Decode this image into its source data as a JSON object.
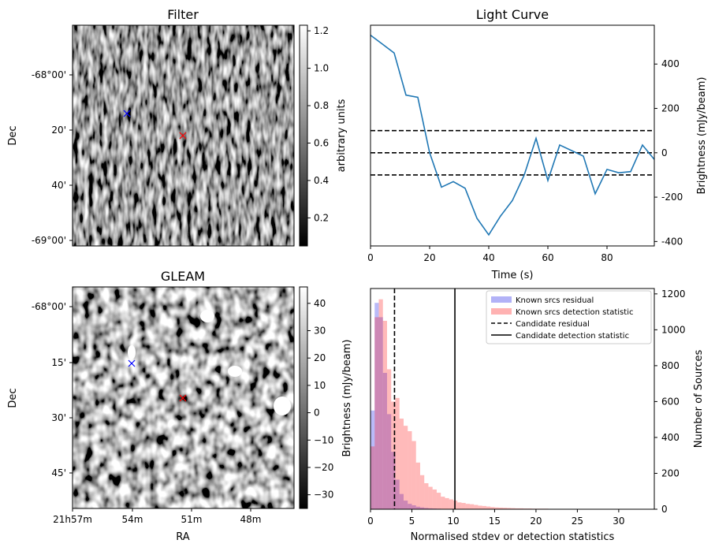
{
  "chart_data": [
    {
      "type": "heatmap",
      "title": "Filter",
      "ylabel": "Dec",
      "yticks": [
        "-68°00'",
        "20'",
        "40'",
        "-69°00'"
      ],
      "colorbar": {
        "label": "arbitrary units",
        "ticks": [
          0.2,
          0.4,
          0.6,
          0.8,
          1.0,
          1.2
        ],
        "range": [
          0.05,
          1.23
        ]
      },
      "markers": [
        {
          "color": "blue",
          "symbol": "x"
        },
        {
          "color": "red",
          "symbol": "x"
        }
      ]
    },
    {
      "type": "line",
      "title": "Light Curve",
      "xlabel": "Time (s)",
      "ylabel": "Brightness (mJy/beam)",
      "xlim": [
        0,
        96
      ],
      "ylim": [
        -420,
        575
      ],
      "xticks": [
        0,
        20,
        40,
        60,
        80
      ],
      "yticks": [
        -400,
        -200,
        0,
        200,
        400
      ],
      "x": [
        0,
        4,
        8,
        12,
        16,
        20,
        24,
        28,
        32,
        36,
        40,
        44,
        48,
        52,
        56,
        60,
        64,
        68,
        72,
        76,
        80,
        84,
        88,
        92,
        96
      ],
      "y": [
        530,
        490,
        450,
        260,
        250,
        0,
        -155,
        -130,
        -160,
        -295,
        -370,
        -285,
        -215,
        -100,
        65,
        -125,
        35,
        10,
        -15,
        -185,
        -75,
        -90,
        -85,
        35,
        -30
      ],
      "hlines": [
        -100,
        0,
        100
      ]
    },
    {
      "type": "heatmap",
      "title": "GLEAM",
      "xlabel": "RA",
      "ylabel": "Dec",
      "xticks": [
        "21h57m",
        "54m",
        "51m",
        "48m"
      ],
      "yticks": [
        "-68°00'",
        "15'",
        "30'",
        "45'"
      ],
      "colorbar": {
        "label": "Brightness (mJy/beam)",
        "ticks": [
          -30,
          -20,
          -10,
          0,
          10,
          20,
          30,
          40
        ],
        "range": [
          -35,
          46
        ]
      },
      "markers": [
        {
          "color": "blue",
          "symbol": "x"
        },
        {
          "color": "red",
          "symbol": "x"
        }
      ]
    },
    {
      "type": "bar",
      "title": "",
      "xlabel": "Normalised stdev or detection statistics",
      "ylabel": "Number of Sources",
      "xlim": [
        0,
        34.3
      ],
      "ylim": [
        0,
        1230
      ],
      "xticks": [
        0,
        5,
        10,
        15,
        20,
        25,
        30
      ],
      "yticks": [
        0,
        200,
        400,
        600,
        800,
        1000,
        1200
      ],
      "bin_width": 0.5,
      "series": [
        {
          "name": "Known srcs residual",
          "color": "#aab0f4",
          "values": [
            550,
            1150,
            1070,
            760,
            530,
            320,
            165,
            85,
            48,
            30,
            22,
            14,
            10,
            7,
            5,
            4,
            3,
            2,
            2,
            1
          ]
        },
        {
          "name": "Known srcs detection statistic",
          "color": "#ffacac",
          "values": [
            350,
            1070,
            1170,
            1050,
            780,
            600,
            620,
            505,
            465,
            435,
            380,
            260,
            190,
            145,
            125,
            110,
            92,
            70,
            62,
            55,
            48,
            38,
            35,
            30,
            28,
            24,
            20,
            18,
            15,
            12,
            10,
            9,
            8,
            7,
            6,
            5,
            5,
            4,
            4,
            3,
            3,
            3,
            3,
            2,
            2,
            2,
            2,
            2,
            2,
            2,
            2,
            2,
            2,
            2,
            2,
            2,
            2,
            2,
            2,
            2,
            2,
            2,
            2,
            2,
            2,
            2,
            2,
            2,
            2
          ]
        }
      ],
      "vlines": [
        {
          "name": "Candidate residual",
          "x": 2.9,
          "style": "dashed"
        },
        {
          "name": "Candidate detection statistic",
          "x": 10.2,
          "style": "solid"
        }
      ],
      "legend_position": "top-right"
    }
  ]
}
